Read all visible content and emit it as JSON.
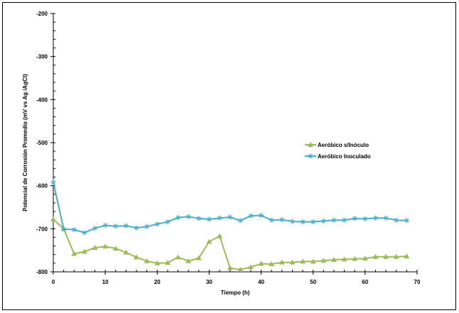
{
  "chart_data": {
    "type": "line",
    "title": "",
    "xlabel": "Tiempo (h)",
    "ylabel": "Potencial de Corrosión Promedio (mV vs Ag /AgCl)",
    "xlim": [
      0,
      70
    ],
    "ylim": [
      -800,
      -200
    ],
    "xticks": [
      "0",
      "10",
      "20",
      "30",
      "40",
      "50",
      "60",
      "70"
    ],
    "yticks": [
      "-200",
      "-300",
      "-400",
      "-500",
      "-600",
      "-700",
      "-800"
    ],
    "grid": false,
    "legend_position": "right",
    "series": [
      {
        "name": "Aeróbico s/Inóculo",
        "color": "#9BBB59",
        "marker": "triangle",
        "x": [
          0,
          2,
          4,
          6,
          8,
          10,
          12,
          14,
          16,
          18,
          20,
          22,
          24,
          26,
          28,
          30,
          32,
          34,
          36,
          38,
          40,
          42,
          44,
          46,
          48,
          50,
          52,
          54,
          56,
          58,
          60,
          62,
          64,
          66,
          68
        ],
        "y": [
          -678,
          -700,
          -758,
          -753,
          -744,
          -741,
          -746,
          -755,
          -766,
          -775,
          -780,
          -779,
          -766,
          -775,
          -768,
          -730,
          -717,
          -791,
          -795,
          -789,
          -781,
          -782,
          -778,
          -778,
          -776,
          -776,
          -774,
          -772,
          -771,
          -770,
          -769,
          -765,
          -765,
          -765,
          -764
        ]
      },
      {
        "name": "Aeróbico Inoculado",
        "color": "#4BACC6",
        "marker": "asterisk",
        "x": [
          0,
          2,
          4,
          6,
          8,
          10,
          12,
          14,
          16,
          18,
          20,
          22,
          24,
          26,
          28,
          30,
          32,
          34,
          36,
          38,
          40,
          42,
          44,
          46,
          48,
          50,
          52,
          54,
          56,
          58,
          60,
          62,
          64,
          66,
          68
        ],
        "y": [
          -592,
          -701,
          -702,
          -709,
          -699,
          -692,
          -694,
          -693,
          -698,
          -695,
          -689,
          -684,
          -674,
          -672,
          -676,
          -678,
          -675,
          -673,
          -681,
          -670,
          -669,
          -680,
          -679,
          -683,
          -684,
          -684,
          -682,
          -680,
          -680,
          -676,
          -677,
          -675,
          -675,
          -680,
          -681
        ]
      }
    ]
  }
}
